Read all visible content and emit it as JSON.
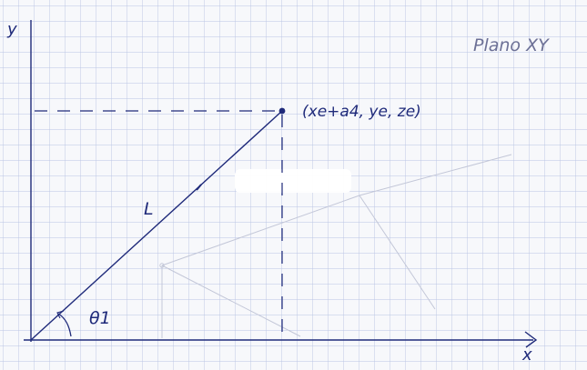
{
  "labels": {
    "y_axis": "y",
    "x_axis": "x",
    "title": "Plano XY",
    "point": "(xe+a4, ye, ze)",
    "length": "L",
    "angle": "θ1"
  },
  "colors": {
    "paper": "#f7f8fb",
    "grid": "#b9c4e4",
    "ink": "#1f2a7a",
    "pencil": "#c3c7d8"
  }
}
